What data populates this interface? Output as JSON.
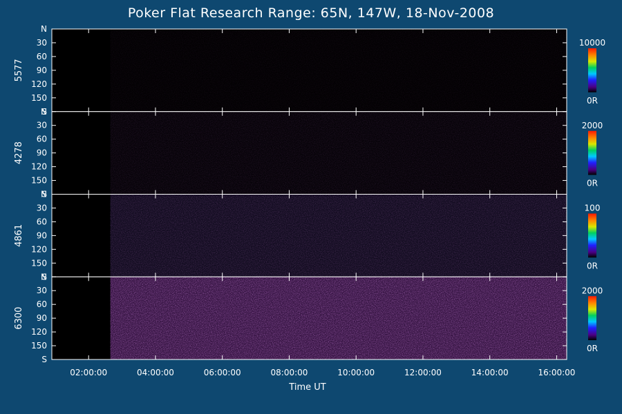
{
  "chart_data": {
    "type": "heatmap",
    "title": "Poker Flat Research Range: 65N, 147W, 18-Nov-2008",
    "xlabel": "Time UT",
    "x_tick_labels": [
      "02:00:00",
      "04:00:00",
      "06:00:00",
      "08:00:00",
      "10:00:00",
      "12:00:00",
      "14:00:00",
      "16:00:00"
    ],
    "x_ticks_hours": [
      2,
      4,
      6,
      8,
      10,
      12,
      14,
      16
    ],
    "xlim_hours": [
      0.9,
      16.3
    ],
    "data_start_hours": 2.65,
    "y_tick_labels": [
      "N",
      "30",
      "60",
      "90",
      "120",
      "150",
      "S"
    ],
    "y_tick_values": [
      0,
      30,
      60,
      90,
      120,
      150,
      180
    ],
    "ylim": [
      0,
      180
    ],
    "panels": [
      {
        "wavelength": "5577",
        "cbar_max": "10000",
        "cbar_min": "0R",
        "intensity_level": 0.05,
        "accent": "#3a0a44"
      },
      {
        "wavelength": "4278",
        "cbar_max": "2000",
        "cbar_min": "0R",
        "intensity_level": 0.1,
        "accent": "#40205a"
      },
      {
        "wavelength": "4861",
        "cbar_max": "100",
        "cbar_min": "0R",
        "intensity_level": 0.2,
        "accent": "#5a3aa0"
      },
      {
        "wavelength": "6300",
        "cbar_max": "2000",
        "cbar_min": "0R",
        "intensity_level": 0.45,
        "accent": "#7a2e96"
      }
    ],
    "colors": {
      "background": "#0e4870",
      "plot": "#000000",
      "axis": "#ffffff"
    }
  }
}
